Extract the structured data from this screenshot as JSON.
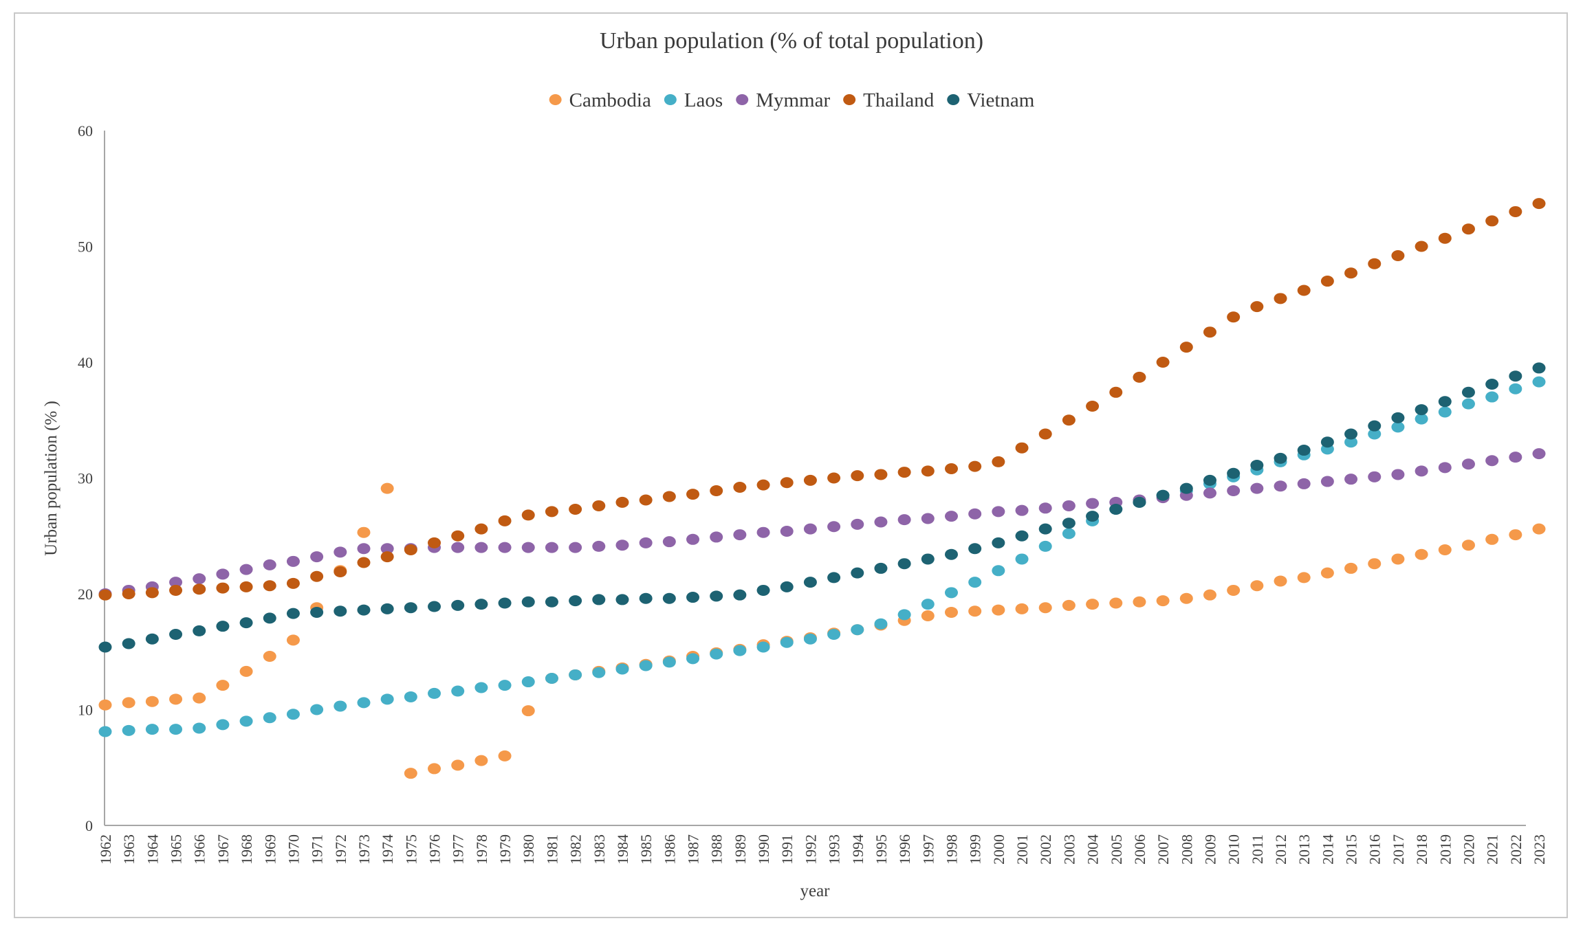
{
  "chart_data": {
    "type": "scatter",
    "title": "Urban population (% of total population)",
    "xlabel": "year",
    "ylabel": "Urban population (% )",
    "ylim": [
      0,
      60
    ],
    "yticks": [
      0,
      10,
      20,
      30,
      40,
      50,
      60
    ],
    "grid": false,
    "legend_position": "top-center",
    "categories": [
      "1962",
      "1963",
      "1964",
      "1965",
      "1966",
      "1967",
      "1968",
      "1969",
      "1970",
      "1971",
      "1972",
      "1973",
      "1974",
      "1975",
      "1976",
      "1977",
      "1978",
      "1979",
      "1980",
      "1981",
      "1982",
      "1983",
      "1984",
      "1985",
      "1986",
      "1987",
      "1988",
      "1989",
      "1990",
      "1991",
      "1992",
      "1993",
      "1994",
      "1995",
      "1996",
      "1997",
      "1998",
      "1999",
      "2000",
      "2001",
      "2002",
      "2003",
      "2004",
      "2005",
      "2006",
      "2007",
      "2008",
      "2009",
      "2010",
      "2011",
      "2012",
      "2013",
      "2014",
      "2015",
      "2016",
      "2017",
      "2018",
      "2019",
      "2020",
      "2021",
      "2022",
      "2023"
    ],
    "series": [
      {
        "name": "Cambodia",
        "color": "#F5994A",
        "values": [
          10.4,
          10.6,
          10.7,
          10.9,
          11.0,
          12.1,
          13.3,
          14.6,
          16.0,
          18.8,
          22.0,
          25.3,
          29.1,
          4.5,
          4.9,
          5.2,
          5.6,
          6.0,
          9.9,
          12.7,
          13.0,
          13.3,
          13.6,
          13.9,
          14.2,
          14.6,
          14.9,
          15.2,
          15.6,
          15.9,
          16.2,
          16.6,
          16.9,
          17.3,
          17.7,
          18.1,
          18.4,
          18.5,
          18.6,
          18.7,
          18.8,
          19.0,
          19.1,
          19.2,
          19.3,
          19.4,
          19.6,
          19.9,
          20.3,
          20.7,
          21.1,
          21.4,
          21.8,
          22.2,
          22.6,
          23.0,
          23.4,
          23.8,
          24.2,
          24.7,
          25.1,
          25.6
        ]
      },
      {
        "name": "Laos",
        "color": "#45AFC7",
        "values": [
          8.1,
          8.2,
          8.3,
          8.3,
          8.4,
          8.7,
          9.0,
          9.3,
          9.6,
          10.0,
          10.3,
          10.6,
          10.9,
          11.1,
          11.4,
          11.6,
          11.9,
          12.1,
          12.4,
          12.7,
          13.0,
          13.2,
          13.5,
          13.8,
          14.1,
          14.4,
          14.8,
          15.1,
          15.4,
          15.8,
          16.1,
          16.5,
          16.9,
          17.4,
          18.2,
          19.1,
          20.1,
          21.0,
          22.0,
          23.0,
          24.1,
          25.2,
          26.3,
          27.3,
          27.9,
          28.5,
          28.9,
          29.5,
          30.1,
          30.7,
          31.4,
          32.0,
          32.5,
          33.1,
          33.8,
          34.4,
          35.1,
          35.7,
          36.4,
          37.0,
          37.7,
          38.3
        ]
      },
      {
        "name": "Mymmar",
        "color": "#8E64A8",
        "values": [
          20.0,
          20.3,
          20.6,
          21.0,
          21.3,
          21.7,
          22.1,
          22.5,
          22.8,
          23.2,
          23.6,
          23.9,
          23.9,
          23.9,
          24.0,
          24.0,
          24.0,
          24.0,
          24.0,
          24.0,
          24.0,
          24.1,
          24.2,
          24.4,
          24.5,
          24.7,
          24.9,
          25.1,
          25.3,
          25.4,
          25.6,
          25.8,
          26.0,
          26.2,
          26.4,
          26.5,
          26.7,
          26.9,
          27.1,
          27.2,
          27.4,
          27.6,
          27.8,
          27.9,
          28.1,
          28.3,
          28.5,
          28.7,
          28.9,
          29.1,
          29.3,
          29.5,
          29.7,
          29.9,
          30.1,
          30.3,
          30.6,
          30.9,
          31.2,
          31.5,
          31.8,
          32.1
        ]
      },
      {
        "name": "Thailand",
        "color": "#C05A12",
        "values": [
          19.9,
          20.0,
          20.1,
          20.3,
          20.4,
          20.5,
          20.6,
          20.7,
          20.9,
          21.5,
          21.9,
          22.7,
          23.2,
          23.8,
          24.4,
          25.0,
          25.6,
          26.3,
          26.8,
          27.1,
          27.3,
          27.6,
          27.9,
          28.1,
          28.4,
          28.6,
          28.9,
          29.2,
          29.4,
          29.6,
          29.8,
          30.0,
          30.2,
          30.3,
          30.5,
          30.6,
          30.8,
          31.0,
          31.4,
          32.6,
          33.8,
          35.0,
          36.2,
          37.4,
          38.7,
          40.0,
          41.3,
          42.6,
          43.9,
          44.8,
          45.5,
          46.2,
          47.0,
          47.7,
          48.5,
          49.2,
          50.0,
          50.7,
          51.5,
          52.2,
          53.0,
          53.7
        ]
      },
      {
        "name": "Vietnam",
        "color": "#1D6272",
        "values": [
          15.4,
          15.7,
          16.1,
          16.5,
          16.8,
          17.2,
          17.5,
          17.9,
          18.3,
          18.4,
          18.5,
          18.6,
          18.7,
          18.8,
          18.9,
          19.0,
          19.1,
          19.2,
          19.3,
          19.3,
          19.4,
          19.5,
          19.5,
          19.6,
          19.6,
          19.7,
          19.8,
          19.9,
          20.3,
          20.6,
          21.0,
          21.4,
          21.8,
          22.2,
          22.6,
          23.0,
          23.4,
          23.9,
          24.4,
          25.0,
          25.6,
          26.1,
          26.7,
          27.3,
          27.9,
          28.5,
          29.1,
          29.8,
          30.4,
          31.1,
          31.7,
          32.4,
          33.1,
          33.8,
          34.5,
          35.2,
          35.9,
          36.6,
          37.4,
          38.1,
          38.8,
          39.5
        ]
      }
    ]
  }
}
